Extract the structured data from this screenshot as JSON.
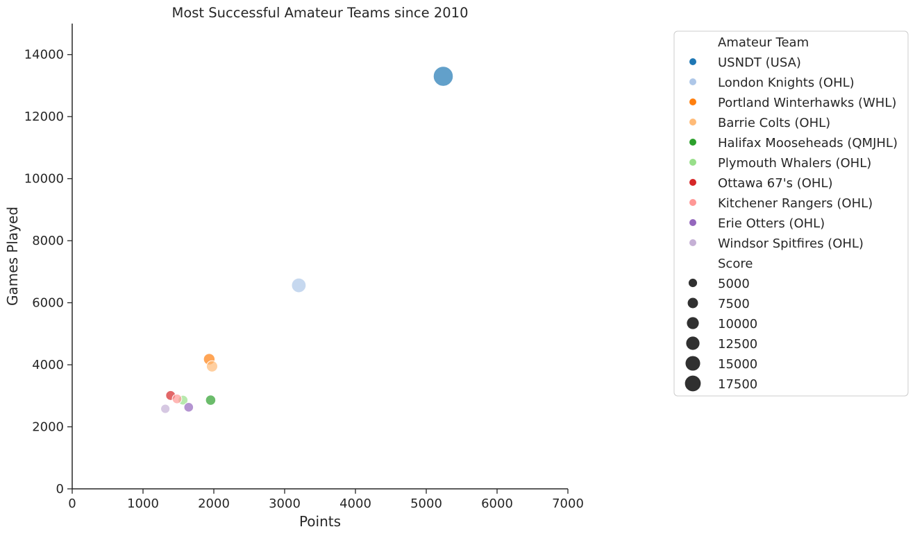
{
  "chart_data": {
    "type": "scatter",
    "title": "Most Successful Amateur Teams since 2010",
    "xlabel": "Points",
    "ylabel": "Games Played",
    "xlim": [
      0,
      7000
    ],
    "ylim": [
      0,
      15000
    ],
    "xticks": [
      0,
      1000,
      2000,
      3000,
      4000,
      5000,
      6000,
      7000
    ],
    "yticks": [
      0,
      2000,
      4000,
      6000,
      8000,
      10000,
      12000,
      14000
    ],
    "grid": false,
    "legend_position": "outside-right",
    "hue_title": "Amateur Team",
    "size_title": "Score",
    "size_legend": [
      5000,
      7500,
      10000,
      12500,
      15000,
      17500
    ],
    "series": [
      {
        "name": "USNDT (USA)",
        "color": "#1f77b4",
        "x": 5240,
        "y": 13300,
        "size": 18500
      },
      {
        "name": "London Knights (OHL)",
        "color": "#aec7e8",
        "x": 3200,
        "y": 6560,
        "size": 9800
      },
      {
        "name": "Portland Winterhawks (WHL)",
        "color": "#ff7f0e",
        "x": 1935,
        "y": 4180,
        "size": 6100
      },
      {
        "name": "Barrie Colts (OHL)",
        "color": "#ffbb78",
        "x": 1975,
        "y": 3950,
        "size": 5900
      },
      {
        "name": "Halifax Mooseheads (QMJHL)",
        "color": "#2ca02c",
        "x": 1955,
        "y": 2860,
        "size": 4800
      },
      {
        "name": "Plymouth Whalers (OHL)",
        "color": "#98df8a",
        "x": 1565,
        "y": 2860,
        "size": 4400
      },
      {
        "name": "Ottawa 67's (OHL)",
        "color": "#d62728",
        "x": 1390,
        "y": 3010,
        "size": 4400
      },
      {
        "name": "Kitchener Rangers (OHL)",
        "color": "#ff9896",
        "x": 1480,
        "y": 2900,
        "size": 4300
      },
      {
        "name": "Erie Otters (OHL)",
        "color": "#9467bd",
        "x": 1645,
        "y": 2630,
        "size": 4200
      },
      {
        "name": "Windsor Spitfires (OHL)",
        "color": "#c5b0d5",
        "x": 1315,
        "y": 2580,
        "size": 3900
      }
    ]
  }
}
